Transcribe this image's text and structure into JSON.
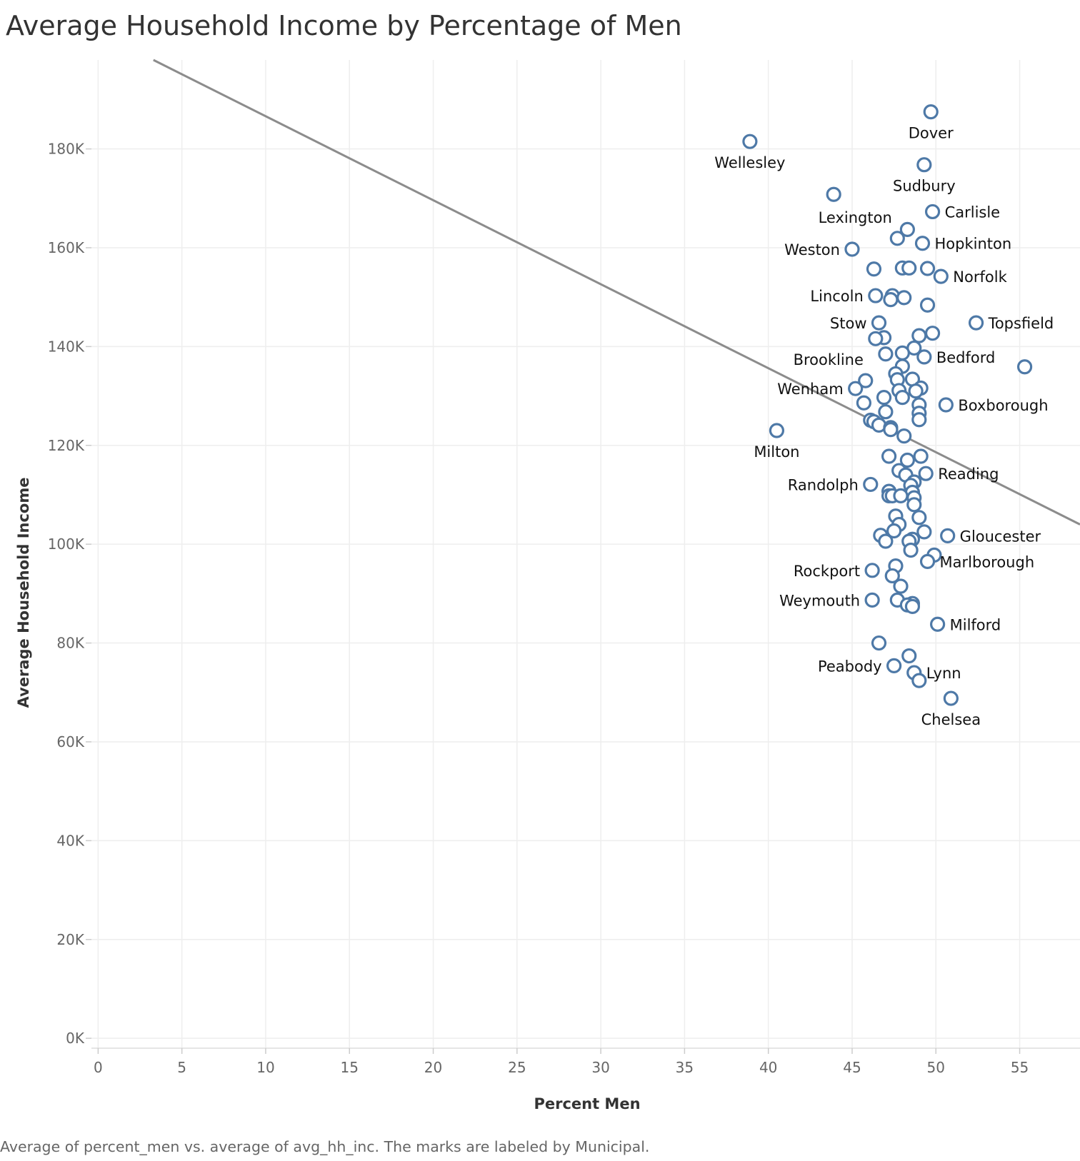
{
  "chart_data": {
    "type": "scatter",
    "title": "Average Household Income by Percentage of Men",
    "xlabel": "Percent Men",
    "ylabel": "Average Household Income",
    "xlim": [
      -0.4,
      58.6
    ],
    "ylim": [
      -2000,
      198000
    ],
    "x_ticks": [
      0,
      5,
      10,
      15,
      20,
      25,
      30,
      35,
      40,
      45,
      50,
      55
    ],
    "x_tick_labels": [
      "0",
      "5",
      "10",
      "15",
      "20",
      "25",
      "30",
      "35",
      "40",
      "45",
      "50",
      "55"
    ],
    "y_ticks": [
      0,
      20000,
      40000,
      60000,
      80000,
      100000,
      120000,
      140000,
      160000,
      180000
    ],
    "y_tick_labels": [
      "0K",
      "20K",
      "40K",
      "60K",
      "80K",
      "100K",
      "120K",
      "140K",
      "160K",
      "180K"
    ],
    "grid": true,
    "trend_line": [
      {
        "x": 3.3,
        "y": 198000
      },
      {
        "x": 58.6,
        "y": 104000
      }
    ],
    "point_color": "#4e79a7",
    "points": [
      {
        "x": 49.7,
        "y": 187500,
        "label": "Dover",
        "pos": "below"
      },
      {
        "x": 38.9,
        "y": 181500,
        "label": "Wellesley",
        "pos": "below"
      },
      {
        "x": 49.3,
        "y": 176800,
        "label": "Sudbury",
        "pos": "below"
      },
      {
        "x": 43.9,
        "y": 170800,
        "label": "Lexington",
        "pos": "below-left"
      },
      {
        "x": 49.8,
        "y": 167300,
        "label": "Carlisle",
        "pos": "right"
      },
      {
        "x": 48.3,
        "y": 163700,
        "label": ""
      },
      {
        "x": 47.7,
        "y": 161900,
        "label": ""
      },
      {
        "x": 49.2,
        "y": 160900,
        "label": "Hopkinton",
        "pos": "right"
      },
      {
        "x": 45.0,
        "y": 159700,
        "label": "Weston",
        "pos": "left"
      },
      {
        "x": 46.3,
        "y": 155700,
        "label": ""
      },
      {
        "x": 48.0,
        "y": 155900,
        "label": ""
      },
      {
        "x": 48.4,
        "y": 155900,
        "label": ""
      },
      {
        "x": 49.5,
        "y": 155800,
        "label": ""
      },
      {
        "x": 50.3,
        "y": 154200,
        "label": "Norfolk",
        "pos": "right"
      },
      {
        "x": 46.4,
        "y": 150300,
        "label": "Lincoln",
        "pos": "left"
      },
      {
        "x": 47.4,
        "y": 150300,
        "label": ""
      },
      {
        "x": 48.1,
        "y": 149900,
        "label": ""
      },
      {
        "x": 47.3,
        "y": 149500,
        "label": ""
      },
      {
        "x": 49.5,
        "y": 148400,
        "label": ""
      },
      {
        "x": 46.6,
        "y": 144800,
        "label": "Stow",
        "pos": "left"
      },
      {
        "x": 52.4,
        "y": 144800,
        "label": "Topsfield",
        "pos": "right"
      },
      {
        "x": 49.8,
        "y": 142700,
        "label": ""
      },
      {
        "x": 49.0,
        "y": 142200,
        "label": ""
      },
      {
        "x": 46.9,
        "y": 141800,
        "label": ""
      },
      {
        "x": 46.4,
        "y": 141600,
        "label": ""
      },
      {
        "x": 48.7,
        "y": 139700,
        "label": ""
      },
      {
        "x": 48.0,
        "y": 138700,
        "label": ""
      },
      {
        "x": 47.0,
        "y": 138500,
        "label": ""
      },
      {
        "x": 49.3,
        "y": 137900,
        "label": "Bedford",
        "pos": "right"
      },
      {
        "x": 48.0,
        "y": 136000,
        "label": ""
      },
      {
        "x": 55.3,
        "y": 135900,
        "label": ""
      },
      {
        "x": 47.6,
        "y": 134500,
        "label": ""
      },
      {
        "x": 47.7,
        "y": 133300,
        "label": ""
      },
      {
        "x": 48.6,
        "y": 133400,
        "label": ""
      },
      {
        "x": 45.8,
        "y": 133100,
        "label": "Brookline",
        "pos": "above-left"
      },
      {
        "x": 49.1,
        "y": 131600,
        "label": ""
      },
      {
        "x": 45.2,
        "y": 131500,
        "label": "Wenham",
        "pos": "left"
      },
      {
        "x": 47.8,
        "y": 131100,
        "label": ""
      },
      {
        "x": 48.8,
        "y": 131000,
        "label": ""
      },
      {
        "x": 46.9,
        "y": 129700,
        "label": ""
      },
      {
        "x": 48.0,
        "y": 129700,
        "label": ""
      },
      {
        "x": 50.6,
        "y": 128200,
        "label": "Boxborough",
        "pos": "right"
      },
      {
        "x": 49.0,
        "y": 128200,
        "label": ""
      },
      {
        "x": 45.7,
        "y": 128600,
        "label": ""
      },
      {
        "x": 47.0,
        "y": 126800,
        "label": ""
      },
      {
        "x": 49.0,
        "y": 126500,
        "label": ""
      },
      {
        "x": 49.0,
        "y": 125200,
        "label": ""
      },
      {
        "x": 46.1,
        "y": 125100,
        "label": ""
      },
      {
        "x": 46.3,
        "y": 124800,
        "label": ""
      },
      {
        "x": 46.6,
        "y": 124100,
        "label": ""
      },
      {
        "x": 47.3,
        "y": 123600,
        "label": ""
      },
      {
        "x": 47.3,
        "y": 123200,
        "label": ""
      },
      {
        "x": 40.5,
        "y": 123000,
        "label": "Milton",
        "pos": "below"
      },
      {
        "x": 48.1,
        "y": 121900,
        "label": ""
      },
      {
        "x": 49.1,
        "y": 117800,
        "label": ""
      },
      {
        "x": 47.2,
        "y": 117800,
        "label": ""
      },
      {
        "x": 48.3,
        "y": 117000,
        "label": ""
      },
      {
        "x": 47.8,
        "y": 114900,
        "label": ""
      },
      {
        "x": 49.4,
        "y": 114300,
        "label": "Reading",
        "pos": "right"
      },
      {
        "x": 48.2,
        "y": 114000,
        "label": ""
      },
      {
        "x": 48.7,
        "y": 112600,
        "label": ""
      },
      {
        "x": 48.5,
        "y": 111900,
        "label": ""
      },
      {
        "x": 46.1,
        "y": 112100,
        "label": "Randolph",
        "pos": "left"
      },
      {
        "x": 47.2,
        "y": 110700,
        "label": ""
      },
      {
        "x": 48.6,
        "y": 110500,
        "label": ""
      },
      {
        "x": 47.2,
        "y": 109800,
        "label": ""
      },
      {
        "x": 47.4,
        "y": 109800,
        "label": ""
      },
      {
        "x": 47.9,
        "y": 109800,
        "label": ""
      },
      {
        "x": 48.7,
        "y": 109400,
        "label": ""
      },
      {
        "x": 48.7,
        "y": 108000,
        "label": ""
      },
      {
        "x": 47.6,
        "y": 105700,
        "label": ""
      },
      {
        "x": 49.0,
        "y": 105400,
        "label": ""
      },
      {
        "x": 47.8,
        "y": 104000,
        "label": ""
      },
      {
        "x": 47.5,
        "y": 102700,
        "label": ""
      },
      {
        "x": 49.3,
        "y": 102500,
        "label": ""
      },
      {
        "x": 46.7,
        "y": 101800,
        "label": ""
      },
      {
        "x": 50.7,
        "y": 101700,
        "label": "Gloucester",
        "pos": "right"
      },
      {
        "x": 48.6,
        "y": 101000,
        "label": ""
      },
      {
        "x": 47.0,
        "y": 100600,
        "label": ""
      },
      {
        "x": 48.4,
        "y": 100600,
        "label": ""
      },
      {
        "x": 48.5,
        "y": 98800,
        "label": ""
      },
      {
        "x": 49.9,
        "y": 97800,
        "label": ""
      },
      {
        "x": 49.5,
        "y": 96500,
        "label": "Marlborough",
        "pos": "right"
      },
      {
        "x": 47.6,
        "y": 95600,
        "label": ""
      },
      {
        "x": 46.2,
        "y": 94700,
        "label": "Rockport",
        "pos": "left"
      },
      {
        "x": 47.4,
        "y": 93600,
        "label": ""
      },
      {
        "x": 47.9,
        "y": 91500,
        "label": ""
      },
      {
        "x": 46.2,
        "y": 88700,
        "label": "Weymouth",
        "pos": "left"
      },
      {
        "x": 47.7,
        "y": 88700,
        "label": ""
      },
      {
        "x": 48.6,
        "y": 88000,
        "label": ""
      },
      {
        "x": 48.3,
        "y": 87700,
        "label": ""
      },
      {
        "x": 48.6,
        "y": 87400,
        "label": ""
      },
      {
        "x": 50.1,
        "y": 83800,
        "label": "Milford",
        "pos": "right"
      },
      {
        "x": 46.6,
        "y": 80000,
        "label": ""
      },
      {
        "x": 48.4,
        "y": 77400,
        "label": ""
      },
      {
        "x": 47.5,
        "y": 75400,
        "label": "Peabody",
        "pos": "left"
      },
      {
        "x": 48.7,
        "y": 74000,
        "label": "Lynn",
        "pos": "right"
      },
      {
        "x": 49.0,
        "y": 72400,
        "label": ""
      },
      {
        "x": 50.9,
        "y": 68800,
        "label": "Chelsea",
        "pos": "below"
      }
    ]
  },
  "caption": "Average of percent_men vs. average of avg_hh_inc.  The marks are labeled by Municipal."
}
